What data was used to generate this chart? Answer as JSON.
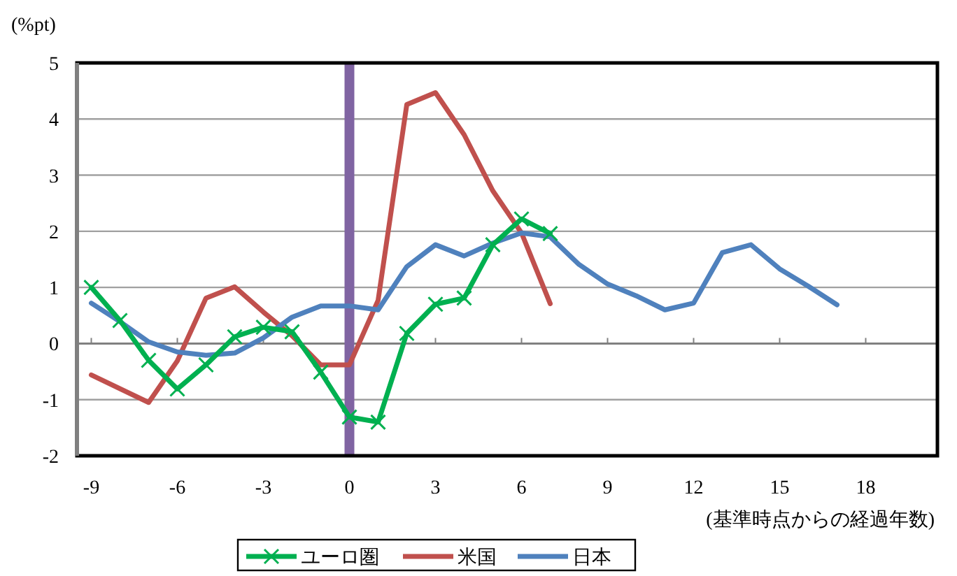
{
  "chart_data": {
    "type": "line",
    "ylabel": "(%pt)",
    "xlabel": "(基準時点からの経過年数)",
    "xlim": [
      -9.5,
      20.5
    ],
    "xticks": [
      -9,
      -6,
      -3,
      0,
      3,
      6,
      9,
      12,
      15,
      18
    ],
    "ylim": [
      -2,
      5
    ],
    "yticks": [
      -2,
      -1,
      0,
      1,
      2,
      3,
      4,
      5
    ],
    "grid": "y",
    "legend": "bottom",
    "line_style": "solid",
    "ref_lines": [
      {
        "axis": "x",
        "value": 0,
        "color": "#8064a2"
      }
    ],
    "series": [
      {
        "name": "ユーロ圏",
        "color": "#00b050",
        "marker": "cross",
        "x": [
          -9,
          -8,
          -7,
          -6,
          -5,
          -4,
          -3,
          -2,
          -1,
          0,
          1,
          2,
          3,
          4,
          5,
          6,
          7
        ],
        "values": [
          1.0,
          0.41,
          -0.3,
          -0.81,
          -0.38,
          0.12,
          0.29,
          0.21,
          -0.51,
          -1.31,
          -1.4,
          0.18,
          0.7,
          0.81,
          1.76,
          2.22,
          1.96
        ]
      },
      {
        "name": "米国",
        "color": "#c0504d",
        "marker": "none",
        "x": [
          -9,
          -7,
          -6,
          -5,
          -4,
          -3,
          -2,
          -1,
          0,
          1,
          2,
          3,
          4,
          5,
          6,
          7
        ],
        "values": [
          -0.56,
          -1.05,
          -0.31,
          0.81,
          1.01,
          0.56,
          0.14,
          -0.38,
          -0.38,
          0.77,
          4.26,
          4.47,
          3.72,
          2.72,
          1.97,
          0.71
        ]
      },
      {
        "name": "日本",
        "color": "#4f81bd",
        "marker": "none",
        "x": [
          -9,
          -8,
          -7,
          -6,
          -5,
          -4,
          -3,
          -2,
          -1,
          0,
          1,
          2,
          3,
          4,
          5,
          6,
          7,
          8,
          9,
          10,
          11,
          12,
          13,
          14,
          15,
          16,
          17
        ],
        "values": [
          0.72,
          0.39,
          0.03,
          -0.15,
          -0.21,
          -0.17,
          0.1,
          0.47,
          0.67,
          0.67,
          0.6,
          1.37,
          1.76,
          1.56,
          1.79,
          1.97,
          1.9,
          1.41,
          1.06,
          0.85,
          0.6,
          0.72,
          1.62,
          1.76,
          1.33,
          1.02,
          0.69
        ]
      }
    ]
  }
}
